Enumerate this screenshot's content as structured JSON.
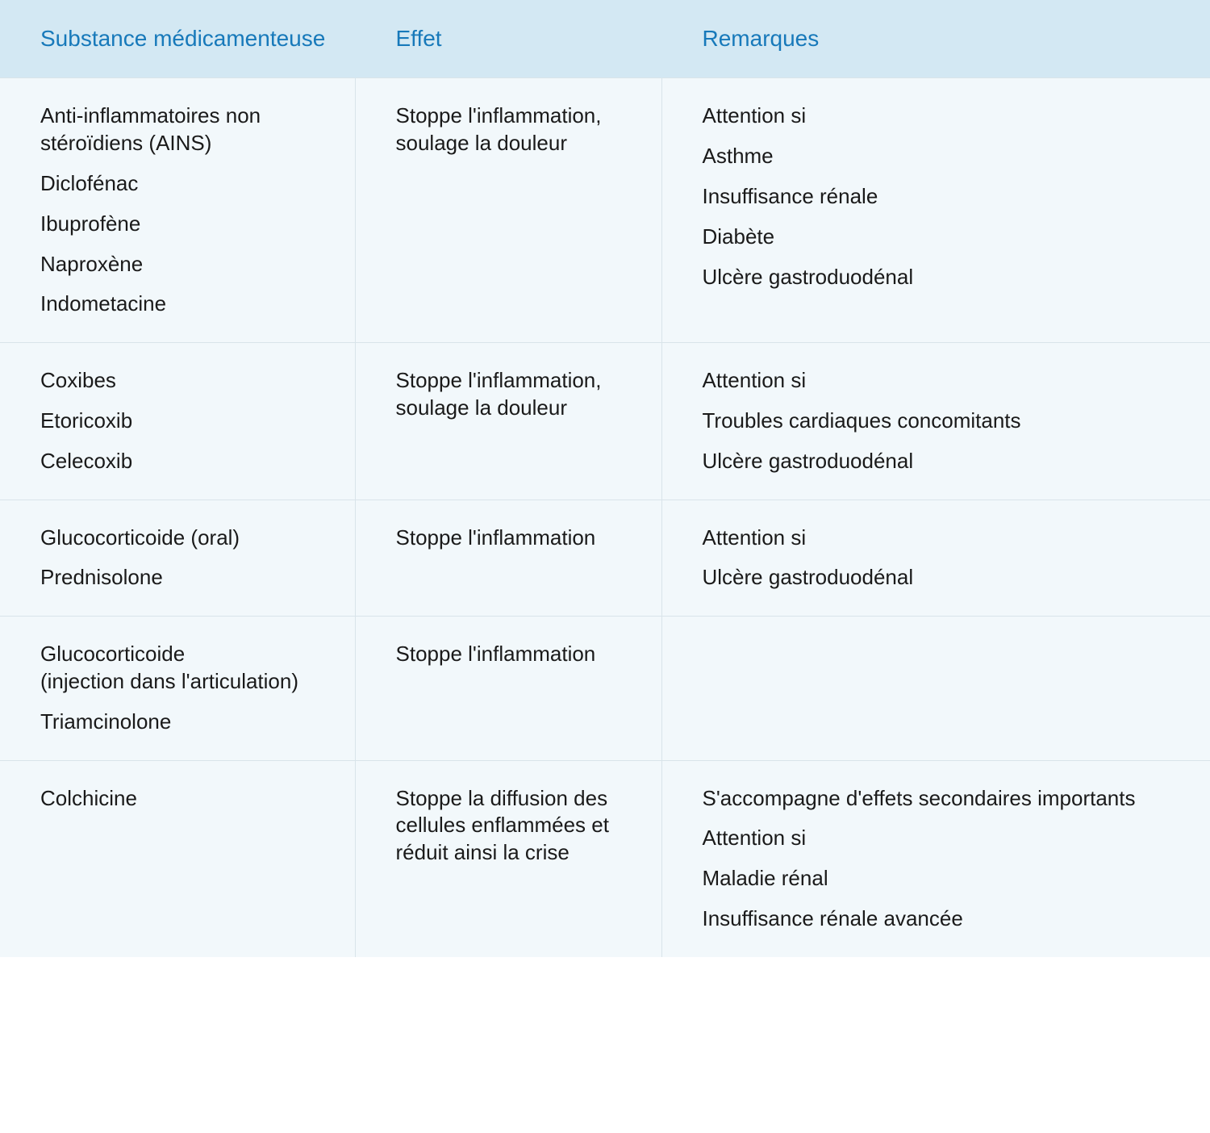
{
  "table": {
    "colors": {
      "header_bg": "#d3e8f3",
      "header_text": "#1779ba",
      "body_bg": "#f2f8fb",
      "body_text": "#1a1a1a",
      "row_border": "#d9e4ea"
    },
    "columns": [
      "Substance médicamenteuse",
      "Effet",
      "Remarques"
    ],
    "rows": [
      {
        "substance": [
          "Anti-inflammatoires non stéroïdiens (AINS)",
          "Diclofénac",
          "Ibuprofène",
          "Naproxène",
          "Indometacine"
        ],
        "effet": [
          "Stoppe l'inflammation, soulage la douleur"
        ],
        "remarques": [
          "Attention si",
          "Asthme",
          "Insuffisance rénale",
          "Diabète",
          "Ulcère gastroduodénal"
        ]
      },
      {
        "substance": [
          "Coxibes",
          "Etoricoxib",
          "Celecoxib"
        ],
        "effet": [
          "Stoppe l'inflammation, soulage la douleur"
        ],
        "remarques": [
          "Attention si",
          "Troubles cardiaques concomitants",
          "Ulcère gastroduodénal"
        ]
      },
      {
        "substance": [
          "Glucocorticoide (oral)",
          "Prednisolone"
        ],
        "effet": [
          "Stoppe l'inflammation"
        ],
        "remarques": [
          "Attention si",
          "Ulcère gastroduodénal"
        ]
      },
      {
        "substance": [
          "Glucocorticoide\n(injection dans l'articulation)",
          "Triamcinolone"
        ],
        "effet": [
          "Stoppe l'inflammation"
        ],
        "remarques": []
      },
      {
        "substance": [
          "Colchicine"
        ],
        "effet": [
          "Stoppe la diffusion des cellules enflammées et réduit ainsi la crise"
        ],
        "remarques": [
          "S'accompagne d'effets secondaires importants",
          "Attention si",
          "Maladie rénal",
          "Insuffisance rénale avancée"
        ]
      }
    ]
  }
}
